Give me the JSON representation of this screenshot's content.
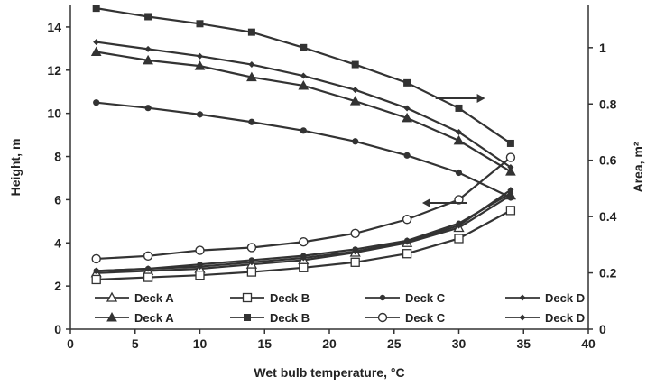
{
  "chart_data": {
    "type": "line",
    "xlabel": "Wet bulb temperature, °C",
    "ylabel_left": "Height, m",
    "ylabel_right": "Area, m²",
    "xlim": [
      0,
      40
    ],
    "ylim_left": [
      0,
      15
    ],
    "ylim_right": [
      0,
      1.15
    ],
    "xticks": [
      0,
      5,
      10,
      15,
      20,
      25,
      30,
      35,
      40
    ],
    "yticks_left": [
      0,
      2,
      4,
      6,
      8,
      10,
      12,
      14
    ],
    "yticks_right": [
      0,
      0.2,
      0.4,
      0.6,
      0.8,
      1
    ],
    "grid": false,
    "x": [
      2,
      6,
      10,
      14,
      18,
      22,
      26,
      30,
      34
    ],
    "series": [
      {
        "name": "Deck A",
        "axis": "left",
        "marker": "open-triangle",
        "values": [
          2.6,
          2.7,
          2.8,
          3.0,
          3.2,
          3.55,
          4.0,
          4.7,
          6.2
        ]
      },
      {
        "name": "Deck B",
        "axis": "left",
        "marker": "open-square",
        "values": [
          2.3,
          2.4,
          2.5,
          2.65,
          2.85,
          3.1,
          3.5,
          4.2,
          5.5
        ]
      },
      {
        "name": "Deck C",
        "axis": "left",
        "marker": "filled-circle",
        "values": [
          2.7,
          2.8,
          3.0,
          3.2,
          3.4,
          3.7,
          4.1,
          4.9,
          6.3
        ]
      },
      {
        "name": "Deck D",
        "axis": "left",
        "marker": "small-diamond",
        "values": [
          2.7,
          2.8,
          2.9,
          3.1,
          3.3,
          3.6,
          4.05,
          4.8,
          6.45
        ]
      },
      {
        "name": "Deck A",
        "axis": "right",
        "marker": "filled-triangle",
        "values": [
          0.985,
          0.955,
          0.935,
          0.895,
          0.865,
          0.81,
          0.75,
          0.67,
          0.56
        ]
      },
      {
        "name": "Deck B",
        "axis": "right",
        "marker": "filled-square",
        "values": [
          1.14,
          1.11,
          1.085,
          1.055,
          1.0,
          0.94,
          0.875,
          0.785,
          0.66
        ]
      },
      {
        "name": "Deck C",
        "axis": "right",
        "marker": "open-circle",
        "values": [
          0.25,
          0.26,
          0.28,
          0.29,
          0.31,
          0.34,
          0.39,
          0.46,
          0.61
        ]
      },
      {
        "name": "Deck D",
        "axis": "right",
        "marker": "small-diamond",
        "values": [
          1.02,
          0.995,
          0.97,
          0.94,
          0.9,
          0.85,
          0.785,
          0.7,
          0.575
        ]
      },
      {
        "name": "Deck C (filled circle, height)",
        "axis": "left",
        "marker": "filled-circle-big",
        "values": [
          10.5,
          10.25,
          9.95,
          9.6,
          9.2,
          8.7,
          8.05,
          7.25,
          6.1
        ]
      }
    ],
    "legend": [
      {
        "label": "Deck A",
        "marker": "open-triangle"
      },
      {
        "label": "Deck B",
        "marker": "open-square"
      },
      {
        "label": "Deck C",
        "marker": "filled-circle"
      },
      {
        "label": "Deck D",
        "marker": "small-diamond"
      },
      {
        "label": "Deck A",
        "marker": "filled-triangle"
      },
      {
        "label": "Deck B",
        "marker": "filled-square"
      },
      {
        "label": "Deck C",
        "marker": "open-circle"
      },
      {
        "label": "Deck D",
        "marker": "small-diamond"
      }
    ],
    "legend_placement": "bottom-inside",
    "annotations": [
      {
        "type": "arrow",
        "direction": "right",
        "points_to_axis": "right"
      },
      {
        "type": "arrow",
        "direction": "left",
        "points_to_axis": "left"
      }
    ]
  }
}
